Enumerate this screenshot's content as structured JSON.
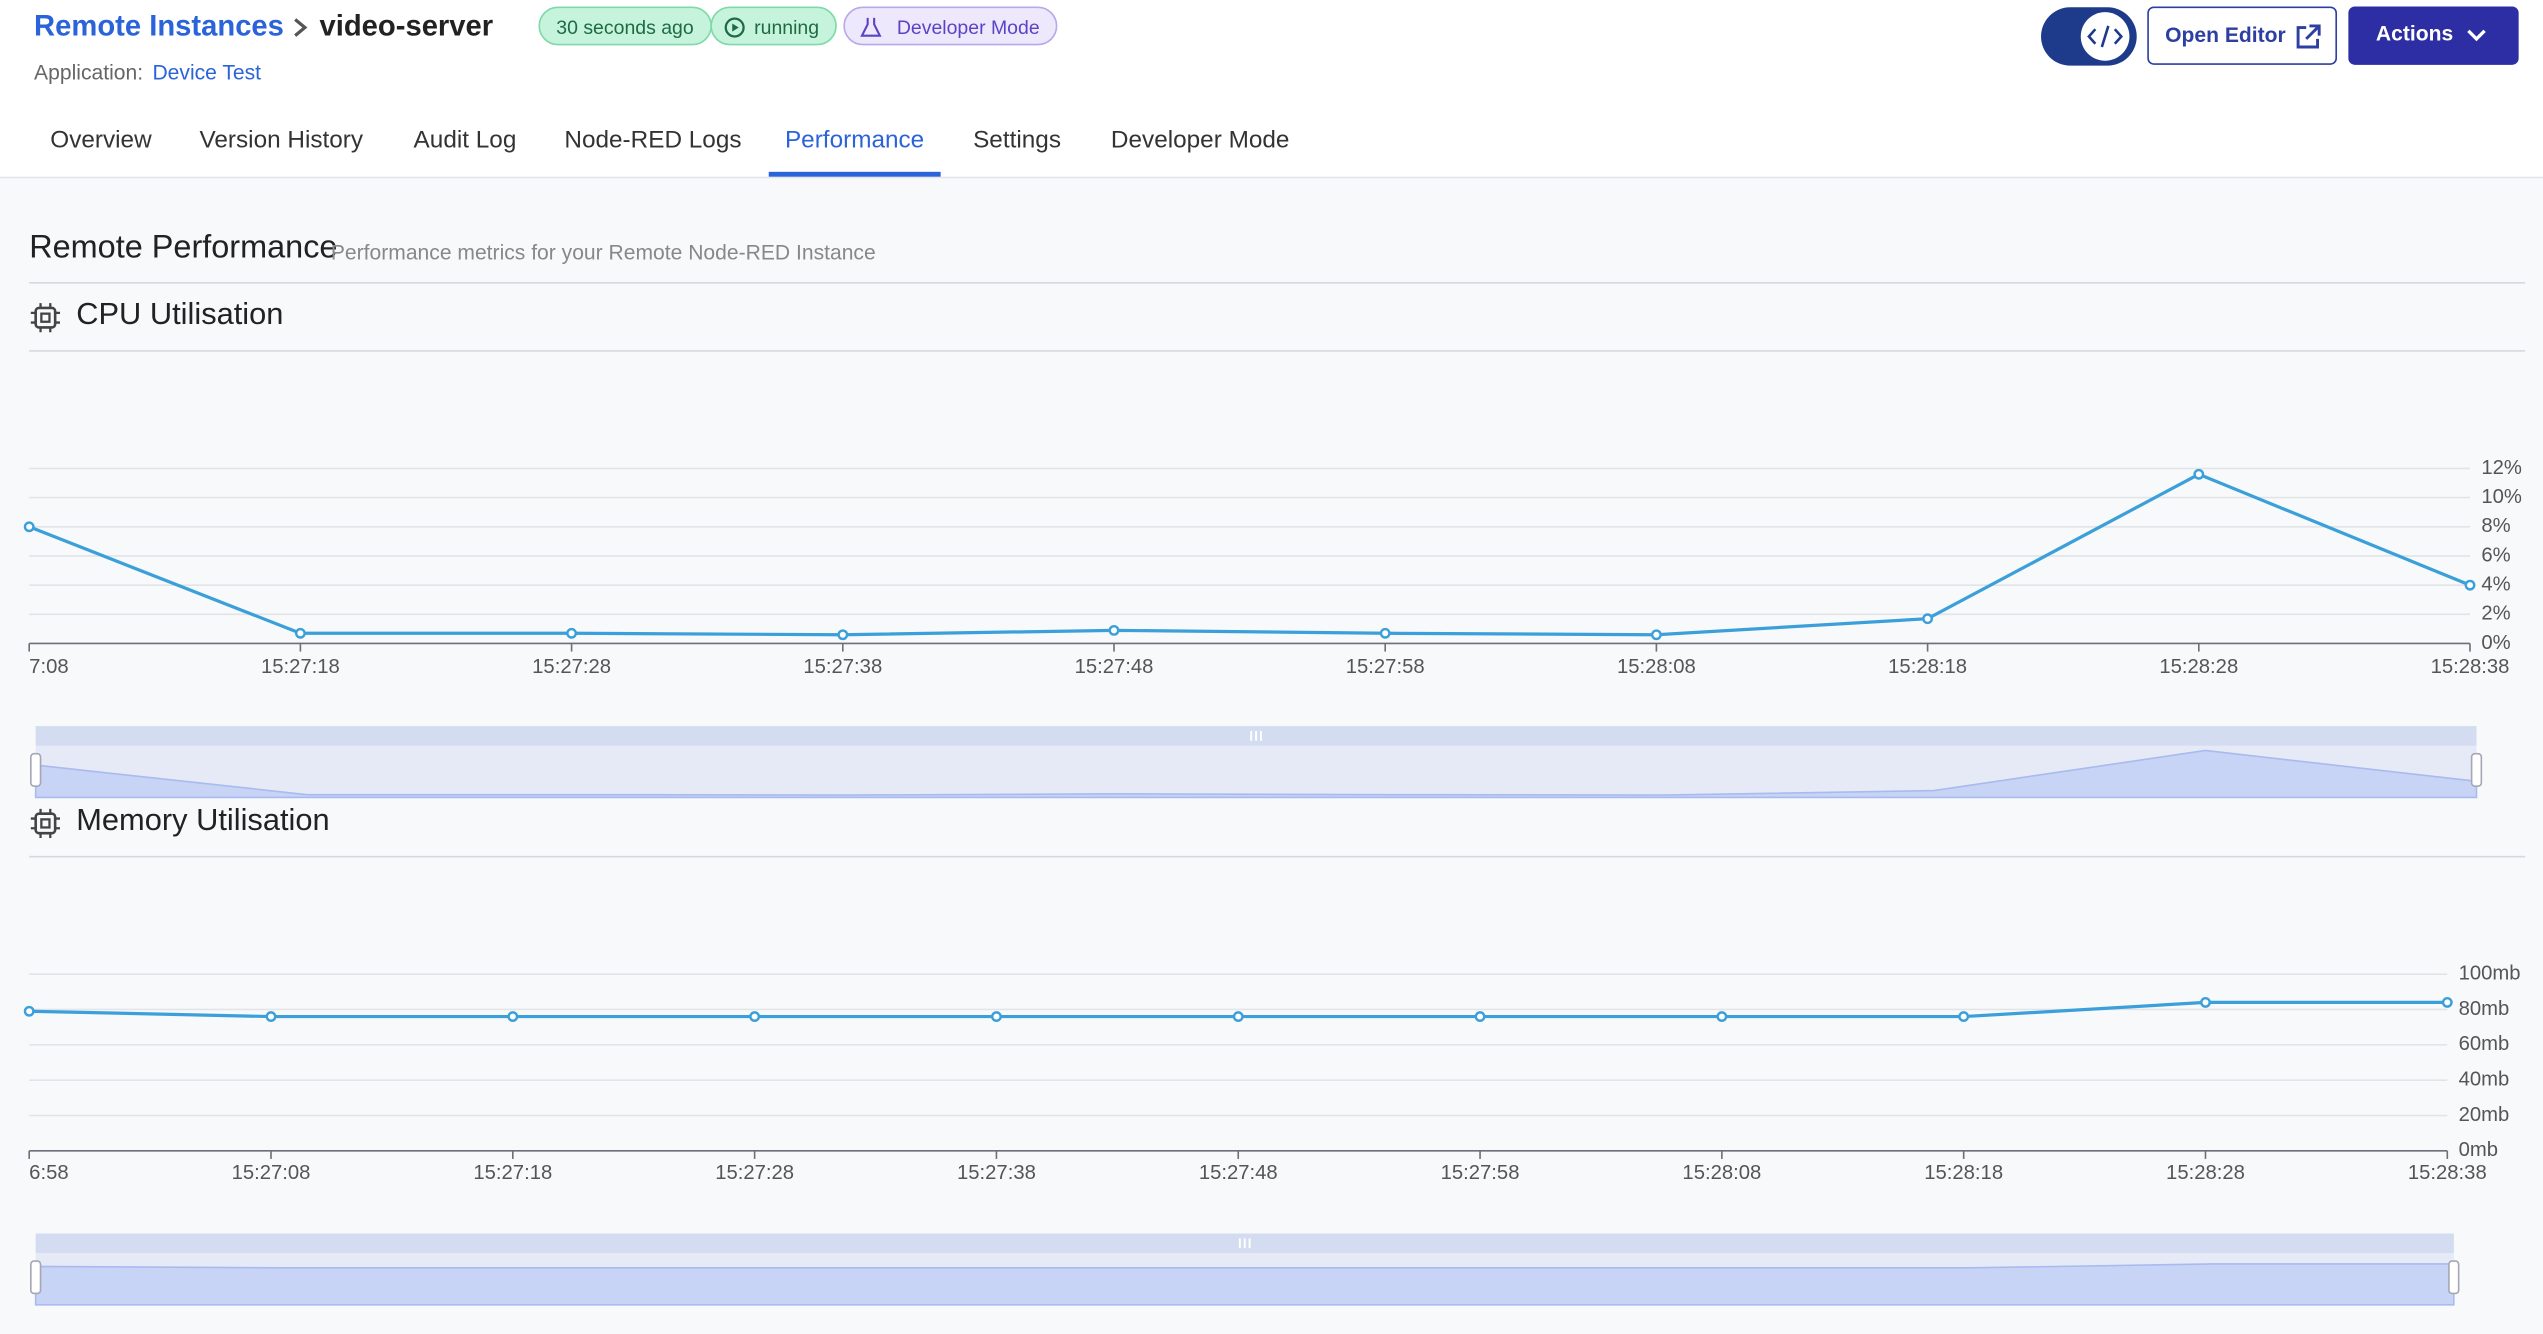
{
  "header": {
    "breadcrumb": "Remote Instances",
    "title": "video-server",
    "badges": [
      "30 seconds ago",
      "running",
      "Developer Mode"
    ],
    "application_label": "Application:",
    "application": "Device Test",
    "buttons": [
      "Open Editor",
      "Actions"
    ]
  },
  "tabs": [
    "Overview",
    "Version History",
    "Audit Log",
    "Node-RED Logs",
    "Performance",
    "Settings",
    "Developer Mode"
  ],
  "active_tab": 4,
  "section": {
    "title": "Remote Performance",
    "subtitle": "Performance metrics for your Remote Node-RED Instance"
  },
  "chart_data": [
    {
      "type": "line",
      "title": "CPU Utilisation",
      "categories": [
        "7:08",
        "15:27:18",
        "15:27:28",
        "15:27:38",
        "15:27:48",
        "15:27:58",
        "15:28:08",
        "15:28:18",
        "15:28:28",
        "15:28:38"
      ],
      "values": [
        8.0,
        0.7,
        0.7,
        0.6,
        0.9,
        0.7,
        0.6,
        1.7,
        11.6,
        4.0
      ],
      "color": "#3ba0d9",
      "ylim": [
        0,
        12
      ],
      "yticks": [
        {
          "value": 0,
          "label": "0%"
        },
        {
          "value": 2,
          "label": "2%"
        },
        {
          "value": 4,
          "label": "4%"
        },
        {
          "value": 6,
          "label": "6%"
        },
        {
          "value": 8,
          "label": "8%"
        },
        {
          "value": 10,
          "label": "10%"
        },
        {
          "value": 12,
          "label": "12%"
        }
      ],
      "grid": true
    },
    {
      "type": "line",
      "title": "Memory Utilisation",
      "categories": [
        "6:58",
        "15:27:08",
        "15:27:18",
        "15:27:28",
        "15:27:38",
        "15:27:48",
        "15:27:58",
        "15:28:08",
        "15:28:18",
        "15:28:28",
        "15:28:38"
      ],
      "values": [
        79,
        76,
        76,
        76,
        76,
        76,
        76,
        76,
        76,
        84,
        84
      ],
      "color": "#3ba0d9",
      "ylim": [
        0,
        100
      ],
      "yticks": [
        {
          "value": 0,
          "label": "0mb"
        },
        {
          "value": 20,
          "label": "20mb"
        },
        {
          "value": 40,
          "label": "40mb"
        },
        {
          "value": 60,
          "label": "60mb"
        },
        {
          "value": 80,
          "label": "80mb"
        },
        {
          "value": 100,
          "label": "100mb"
        }
      ],
      "grid": true
    }
  ]
}
